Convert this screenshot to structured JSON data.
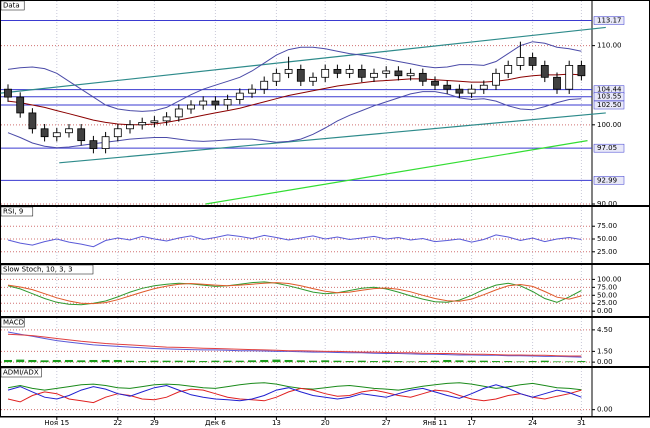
{
  "chart_data": [
    {
      "type": "candlestick",
      "title": "Data",
      "categories": [
        null,
        null,
        null,
        null,
        "Ноя 15",
        null,
        null,
        null,
        null,
        "22",
        null,
        null,
        "29",
        null,
        null,
        null,
        null,
        "Дек 6",
        null,
        null,
        null,
        null,
        "13",
        null,
        null,
        null,
        "20",
        null,
        null,
        null,
        null,
        "27",
        null,
        null,
        null,
        "Янв 11",
        null,
        null,
        "17",
        null,
        null,
        null,
        null,
        "24",
        null,
        null,
        null,
        "31"
      ],
      "open": [
        104.5,
        103.5,
        101.5,
        99.5,
        98.5,
        99,
        99.5,
        98,
        97,
        98.5,
        99.5,
        100,
        100.3,
        100.5,
        101,
        102,
        102.5,
        103,
        102.5,
        103.2,
        104,
        104.5,
        105.5,
        106.5,
        107,
        105.5,
        106,
        107,
        106.5,
        107,
        106,
        106.5,
        106.8,
        106.2,
        106.5,
        105.5,
        105,
        104.5,
        104,
        104.5,
        105,
        106.5,
        107.5,
        108.5,
        107.5,
        106,
        104.5,
        107.5
      ],
      "high": [
        105.1,
        104.1,
        102.1,
        100.1,
        99.6,
        100.1,
        100.1,
        98.6,
        99.1,
        100.1,
        100.6,
        100.9,
        101.1,
        101.6,
        102.6,
        103.1,
        103.6,
        103.6,
        103.8,
        104.6,
        105.1,
        106.1,
        107.1,
        108.6,
        107.6,
        106.6,
        107.6,
        107.6,
        107.6,
        107.6,
        107.1,
        107.4,
        107.4,
        107.1,
        107.1,
        106.1,
        105.6,
        105.1,
        105.1,
        105.6,
        107.1,
        108.1,
        110.5,
        109.1,
        108.1,
        106.6,
        108.1,
        108.1
      ],
      "low": [
        102.9,
        100.9,
        98.9,
        97.9,
        97.9,
        98.4,
        97.4,
        96.4,
        96.4,
        97.9,
        98.9,
        99.4,
        99.7,
        99.9,
        100.4,
        101.4,
        101.9,
        101.9,
        101.9,
        102.6,
        103.4,
        103.9,
        104.9,
        105.9,
        104.9,
        104.9,
        105.4,
        105.9,
        105.9,
        105.4,
        105.4,
        105.9,
        105.6,
        105.6,
        104.9,
        104.4,
        103.9,
        103.4,
        103.4,
        103.9,
        104.4,
        105.9,
        106.9,
        106.9,
        105.4,
        103.9,
        103.9,
        105.6
      ],
      "close": [
        103.5,
        101.5,
        99.5,
        98.5,
        99,
        99.5,
        98,
        97,
        98.5,
        99.5,
        100,
        100.3,
        100.5,
        101,
        102,
        102.5,
        103,
        102.5,
        103.2,
        104,
        104.5,
        105.5,
        106.5,
        107,
        105.5,
        106,
        107,
        106.5,
        107,
        106,
        106.5,
        106.8,
        106.2,
        106.5,
        105.5,
        105,
        104.5,
        104,
        104.5,
        105,
        106.5,
        107.5,
        108.5,
        107.5,
        106,
        104.5,
        107.5,
        106.2
      ],
      "up_color": "#ffffff",
      "down_color": "#404040",
      "series": [
        {
          "color": "#8b0000",
          "values": [
            103,
            102.8,
            102.5,
            102.2,
            101.8,
            101.4,
            101,
            100.6,
            100.3,
            100.1,
            100,
            100,
            100.1,
            100.3,
            100.6,
            100.9,
            101.2,
            101.5,
            101.8,
            102.1,
            102.5,
            102.9,
            103.3,
            103.7,
            104,
            104.3,
            104.6,
            104.9,
            105.1,
            105.3,
            105.5,
            105.6,
            105.7,
            105.8,
            105.8,
            105.7,
            105.6,
            105.5,
            105.4,
            105.4,
            105.5,
            105.7,
            106,
            106.2,
            106.3,
            106.3,
            106.4,
            106.3
          ]
        },
        {
          "color": "#4b4ba8",
          "values": [
            107,
            107.2,
            107.3,
            107.1,
            106.5,
            105.5,
            104.5,
            103.5,
            102.5,
            102,
            101.8,
            101.7,
            101.8,
            102.2,
            103,
            103.8,
            104.5,
            105,
            105.5,
            106,
            106.8,
            107.8,
            108.8,
            109.5,
            109.8,
            109.8,
            109.6,
            109.3,
            109,
            108.8,
            108.6,
            108.3,
            108,
            107.7,
            107.4,
            107.2,
            107.3,
            107.6,
            107.6,
            107.5,
            108,
            109,
            110,
            110.5,
            110.3,
            109.8,
            109.6,
            109.3
          ]
        },
        {
          "color": "#4b4ba8",
          "values": [
            99,
            98.4,
            97.7,
            97.3,
            97.1,
            97.2,
            97.4,
            97.6,
            97.8,
            98,
            98.2,
            98.3,
            98.4,
            98.4,
            98.2,
            98,
            97.9,
            98,
            98.1,
            98.2,
            98.2,
            98,
            97.8,
            97.9,
            98.2,
            98.8,
            99.6,
            100.5,
            101.2,
            101.8,
            102.4,
            102.9,
            103.4,
            103.9,
            104.2,
            104.2,
            103.9,
            103.4,
            103.2,
            103.3,
            103,
            102.4,
            102,
            101.9,
            102.3,
            102.8,
            103.2,
            103.3
          ]
        }
      ],
      "trendlines": [
        {
          "color": "#2e8b8b",
          "x": [
            -0.6,
            49
          ],
          "values": [
            104,
            112.3
          ]
        },
        {
          "color": "#2e8b8b",
          "x": [
            4.2,
            49
          ],
          "values": [
            95.2,
            101.5
          ]
        },
        {
          "color": "#33dd33",
          "x": [
            16.2,
            47.5
          ],
          "values": [
            90,
            98
          ]
        }
      ],
      "levels": [
        113.17,
        104.44,
        103.55,
        {
          "value": 102.5,
          "label": "102.50"
        },
        97.05,
        92.99
      ],
      "level_color": "#3a3ad0",
      "ylim": [
        90,
        114.5
      ],
      "yticks": [
        {
          "value": 90,
          "label": "90.00"
        },
        {
          "value": 100,
          "label": "100.00"
        },
        {
          "value": 110,
          "label": "110.00"
        }
      ]
    },
    {
      "type": "line",
      "title": "RSI, 9",
      "series": [
        {
          "color": "#5a5ad8",
          "values": [
            48,
            42,
            38,
            45,
            50,
            44,
            40,
            35,
            47,
            52,
            48,
            55,
            50,
            46,
            52,
            56,
            49,
            53,
            58,
            55,
            51,
            57,
            53,
            48,
            52,
            56,
            50,
            54,
            49,
            52,
            55,
            50,
            53,
            48,
            51,
            45,
            47,
            50,
            44,
            49,
            58,
            54,
            47,
            52,
            45,
            50,
            53,
            49
          ]
        }
      ],
      "ylim": [
        5,
        95
      ],
      "yticks": [
        {
          "value": 25,
          "label": "25.00"
        },
        {
          "value": 50,
          "label": "50.00"
        },
        {
          "value": 75,
          "label": "75.00"
        }
      ]
    },
    {
      "type": "line",
      "title": "Slow Stoch, 10, 3, 3",
      "series": [
        {
          "color": "#2f9a2f",
          "values": [
            80,
            70,
            55,
            40,
            28,
            22,
            20,
            25,
            32,
            45,
            60,
            72,
            80,
            85,
            88,
            86,
            82,
            78,
            80,
            85,
            90,
            92,
            88,
            80,
            70,
            60,
            55,
            58,
            65,
            72,
            75,
            70,
            60,
            48,
            38,
            30,
            28,
            35,
            50,
            68,
            82,
            88,
            80,
            62,
            40,
            28,
            45,
            65
          ]
        },
        {
          "color": "#e05a2a",
          "values": [
            82,
            76,
            68,
            55,
            42,
            32,
            25,
            24,
            27,
            36,
            48,
            60,
            71,
            79,
            85,
            87,
            85,
            82,
            80,
            82,
            85,
            88,
            90,
            87,
            80,
            71,
            63,
            58,
            60,
            66,
            71,
            73,
            69,
            61,
            50,
            40,
            33,
            31,
            38,
            52,
            67,
            80,
            84,
            78,
            62,
            44,
            38,
            48
          ]
        }
      ],
      "ylim": [
        -12,
        117
      ],
      "yticks": [
        {
          "value": 0,
          "label": "0.00"
        },
        {
          "value": 25,
          "label": "25.00"
        },
        {
          "value": 50,
          "label": "50.00"
        },
        {
          "value": 75,
          "label": "75.00"
        },
        {
          "value": 100,
          "label": "100.00"
        }
      ]
    },
    {
      "type": "line",
      "title": "MACD",
      "series": [
        {
          "color": "#1a9a1a",
          "style": "bar",
          "values": [
            0.3,
            0.35,
            0.3,
            0.25,
            0.3,
            0.3,
            0.25,
            0.3,
            0.3,
            0.3,
            0.2,
            0.15,
            0.2,
            0.2,
            0.2,
            0.2,
            0.15,
            0.2,
            0.2,
            0.2,
            0.25,
            0.3,
            0.35,
            0.3,
            0.25,
            0.2,
            0.25,
            0.2,
            0.15,
            0.2,
            0.15,
            0.2,
            0.15,
            0.1,
            0.15,
            0.2,
            0.3,
            0.25,
            0.2,
            0.2,
            0.15,
            0.15,
            0.1,
            0.15,
            0.2,
            0.1,
            0.1,
            0.15
          ]
        },
        {
          "color": "#5a5ad8",
          "values": [
            4.2,
            3.9,
            3.6,
            3.3,
            3.0,
            2.8,
            2.6,
            2.4,
            2.3,
            2.2,
            2.1,
            2.0,
            1.9,
            1.85,
            1.8,
            1.75,
            1.7,
            1.7,
            1.65,
            1.6,
            1.6,
            1.55,
            1.5,
            1.5,
            1.45,
            1.4,
            1.4,
            1.35,
            1.3,
            1.3,
            1.25,
            1.2,
            1.2,
            1.15,
            1.1,
            1.1,
            1.05,
            1.0,
            1.0,
            0.95,
            0.95,
            0.9,
            0.9,
            0.85,
            0.8,
            0.8,
            0.75,
            0.7
          ]
        },
        {
          "color": "#e04040",
          "values": [
            3.9,
            3.8,
            3.7,
            3.5,
            3.3,
            3.1,
            2.9,
            2.75,
            2.6,
            2.5,
            2.4,
            2.3,
            2.2,
            2.1,
            2.05,
            2.0,
            1.95,
            1.9,
            1.85,
            1.8,
            1.75,
            1.7,
            1.65,
            1.6,
            1.6,
            1.55,
            1.5,
            1.5,
            1.45,
            1.4,
            1.4,
            1.35,
            1.3,
            1.3,
            1.25,
            1.2,
            1.2,
            1.15,
            1.1,
            1.1,
            1.05,
            1.0,
            1.0,
            0.95,
            0.95,
            0.9,
            0.85,
            0.85
          ]
        }
      ],
      "ylim": [
        -0.4,
        4.9
      ],
      "yticks": [
        {
          "value": 0,
          "label": "0.00"
        },
        {
          "value": 1.5,
          "label": "1.50"
        },
        {
          "value": 4.5,
          "label": "4.50"
        }
      ]
    },
    {
      "type": "line",
      "title": "ADMI/ADX",
      "series": [
        {
          "color": "#1a8a1a",
          "values": [
            62,
            68,
            60,
            55,
            60,
            65,
            70,
            72,
            68,
            62,
            60,
            65,
            70,
            72,
            70,
            66,
            62,
            60,
            65,
            70,
            74,
            76,
            72,
            65,
            60,
            58,
            62,
            66,
            68,
            64,
            60,
            58,
            55,
            60,
            66,
            70,
            74,
            76,
            72,
            66,
            60,
            64,
            70,
            74,
            68,
            62,
            60,
            56
          ]
        },
        {
          "color": "#e02020",
          "values": [
            30,
            22,
            40,
            50,
            45,
            30,
            25,
            20,
            35,
            45,
            40,
            30,
            28,
            35,
            50,
            58,
            55,
            45,
            35,
            30,
            28,
            25,
            35,
            50,
            60,
            55,
            45,
            38,
            40,
            50,
            55,
            48,
            40,
            35,
            45,
            55,
            52,
            40,
            30,
            25,
            30,
            40,
            45,
            35,
            30,
            38,
            45,
            55
          ]
        },
        {
          "color": "#2020d0",
          "values": [
            55,
            65,
            50,
            35,
            30,
            40,
            55,
            65,
            58,
            45,
            38,
            50,
            62,
            68,
            55,
            42,
            35,
            30,
            28,
            25,
            30,
            40,
            55,
            62,
            50,
            40,
            35,
            30,
            35,
            45,
            40,
            35,
            45,
            55,
            60,
            50,
            40,
            32,
            45,
            60,
            70,
            60,
            45,
            35,
            45,
            55,
            48,
            35
          ]
        }
      ],
      "ylim": [
        -15,
        92
      ],
      "yticks": [
        {
          "value": 0,
          "label": "0.00"
        }
      ]
    }
  ]
}
